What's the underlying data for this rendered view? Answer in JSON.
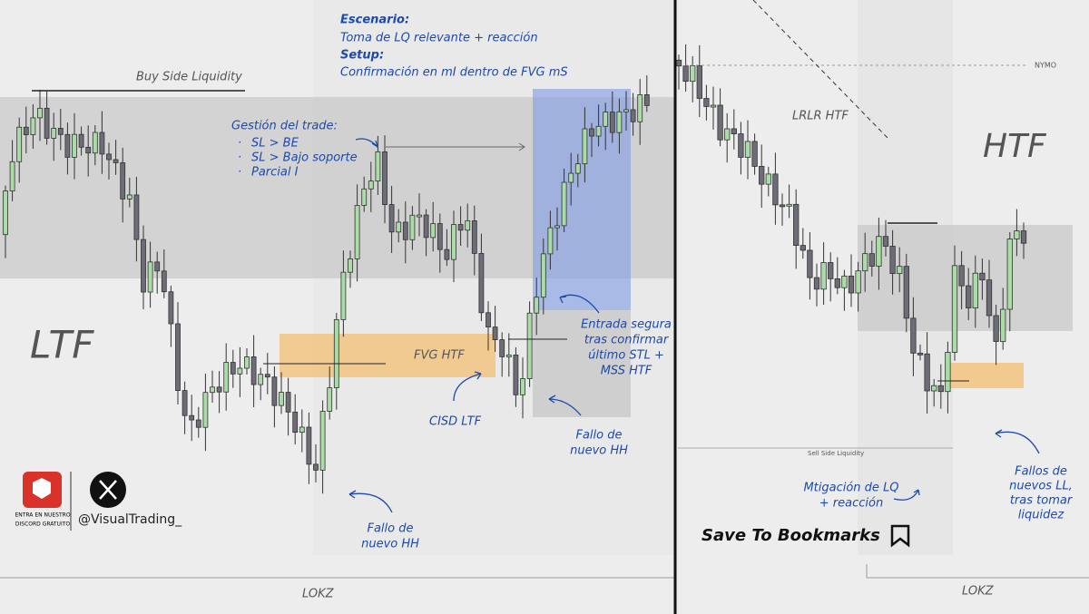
{
  "scenario": {
    "label": "Escenario:",
    "text": "Toma de LQ relevante + reacción",
    "setup_label": "Setup:",
    "setup_text": "Confirmación en mI dentro de FVG mS"
  },
  "ltf": {
    "title": "LTF",
    "buy_side": "Buy Side Liquidity",
    "management": {
      "title": "Gestión del trade:",
      "items": [
        "SL > BE",
        "SL > Bajo soporte",
        "Parcial I"
      ]
    },
    "fvg": "FVG HTF",
    "cisd": "CISD LTF",
    "entry": [
      "Entrada segura",
      "tras confirmar",
      "último STL +",
      "MSS HTF"
    ],
    "fail_right": [
      "Fallo de",
      "nuevo HH"
    ],
    "fail_bottom": [
      "Fallo de",
      "nuevo HH"
    ],
    "session": "LOKZ"
  },
  "branding": {
    "discord": [
      "ENTRA EN NUESTRO",
      "DISCORD GRATUITO"
    ],
    "handle": "@VisualTrading_"
  },
  "htf": {
    "title": "HTF",
    "nymo": "NYMO",
    "lrlr": "LRLR HTF",
    "sell_side": "Sell Side Liquidity",
    "mitigation": [
      "Mtigación de LQ",
      "+ reacción"
    ],
    "fails": [
      "Fallos de",
      "nuevos LL,",
      "tras tomar",
      "liquidez"
    ],
    "session": "LOKZ",
    "bookmark": "Save To Bookmarks"
  }
}
